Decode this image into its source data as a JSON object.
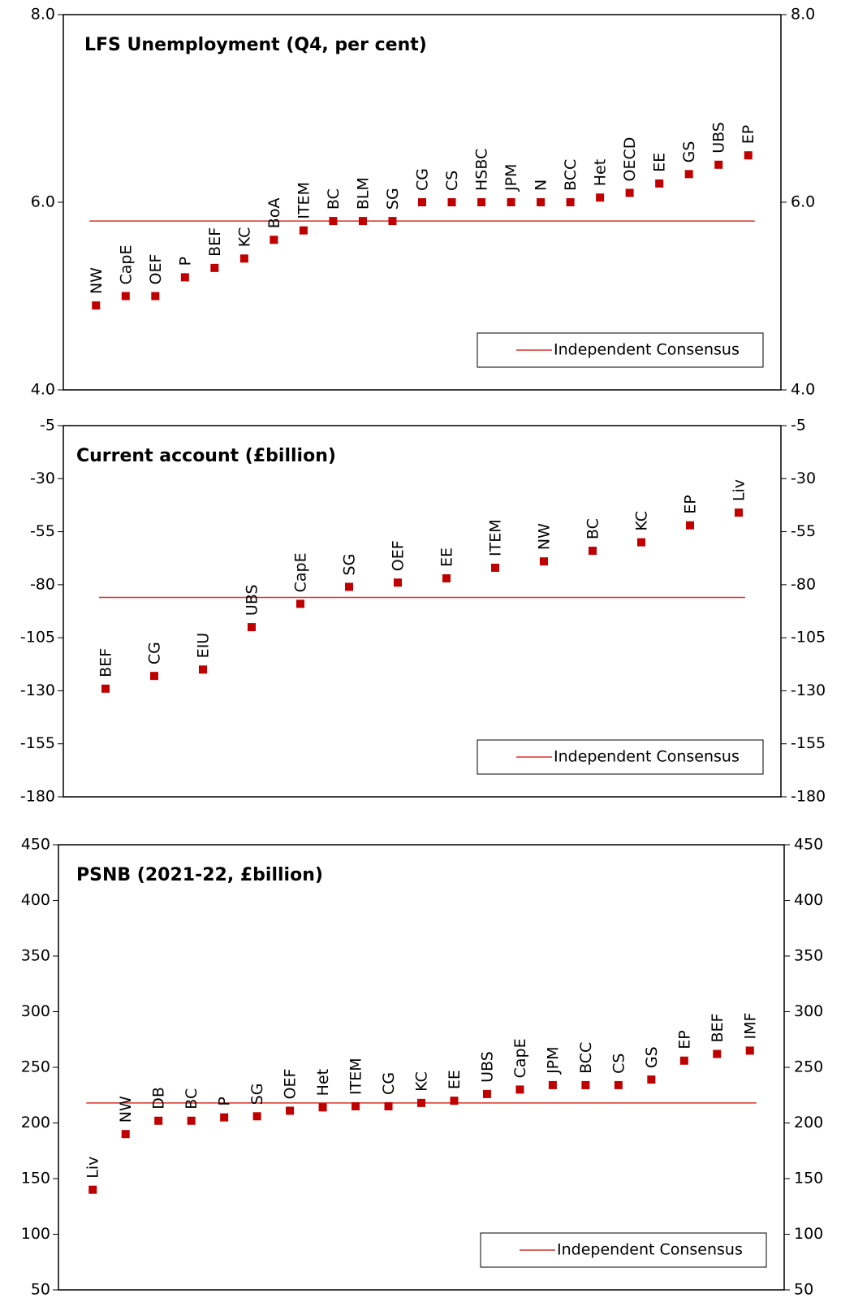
{
  "chart_data": [
    {
      "type": "dot",
      "title": "LFS Unemployment  (Q4, per cent)",
      "categories": [
        "NW",
        "CapE",
        "OEF",
        "P",
        "BEF",
        "KC",
        "BoA",
        "ITEM",
        "BC",
        "BLM",
        "SG",
        "CG",
        "CS",
        "HSBC",
        "JPM",
        "N",
        "BCC",
        "Het",
        "OECD",
        "EE",
        "GS",
        "UBS",
        "EP"
      ],
      "values": [
        4.9,
        5.0,
        5.0,
        5.2,
        5.3,
        5.4,
        5.6,
        5.7,
        5.8,
        5.8,
        5.8,
        6.0,
        6.0,
        6.0,
        6.0,
        6.0,
        6.0,
        6.05,
        6.1,
        6.2,
        6.3,
        6.4,
        6.5
      ],
      "color": "#c00000",
      "reference_line": {
        "name": "Independent Consensus",
        "value": 5.8,
        "color": "#d9302a"
      },
      "ylim": [
        4,
        8
      ],
      "yticks": [
        {
          "value": 4,
          "label": "4.0"
        },
        {
          "value": 6,
          "label": "6.0"
        },
        {
          "value": 8,
          "label": "8.0"
        }
      ],
      "legend": "lower right"
    },
    {
      "type": "dot",
      "title": "Current account (£billion)",
      "categories": [
        "BEF",
        "CG",
        "EIU",
        "UBS",
        "CapE",
        "SG",
        "OEF",
        "EE",
        "ITEM",
        "NW",
        "BC",
        "KC",
        "EP",
        "Liv"
      ],
      "values": [
        -129,
        -123,
        -120,
        -100,
        -89,
        -81,
        -79,
        -77,
        -72,
        -69,
        -64,
        -60,
        -52,
        -46
      ],
      "color": "#c00000",
      "reference_line": {
        "name": "Independent Consensus",
        "value": -86,
        "color": "#d9302a"
      },
      "ylim": [
        -180,
        -5
      ],
      "yticks": [
        -180,
        -155,
        -130,
        -105,
        -80,
        -55,
        -30,
        -5
      ],
      "legend": "lower right"
    },
    {
      "type": "dot",
      "title": "PSNB (2021-22, £billion)",
      "categories": [
        "Liv",
        "NW",
        "DB",
        "BC",
        "P",
        "SG",
        "OEF",
        "Het",
        "ITEM",
        "CG",
        "KC",
        "EE",
        "UBS",
        "CapE",
        "JPM",
        "BCC",
        "CS",
        "GS",
        "EP",
        "BEF",
        "IMF"
      ],
      "values": [
        140,
        190,
        202,
        202,
        205,
        206,
        211,
        214,
        215,
        215,
        218,
        220,
        226,
        230,
        234,
        234,
        234,
        239,
        256,
        262,
        265
      ],
      "color": "#c00000",
      "reference_line": {
        "name": "Independent Consensus",
        "value": 218,
        "color": "#d9302a"
      },
      "ylim": [
        50,
        450
      ],
      "yticks": [
        50,
        100,
        150,
        200,
        250,
        300,
        350,
        400,
        450
      ],
      "legend": "lower right"
    }
  ]
}
